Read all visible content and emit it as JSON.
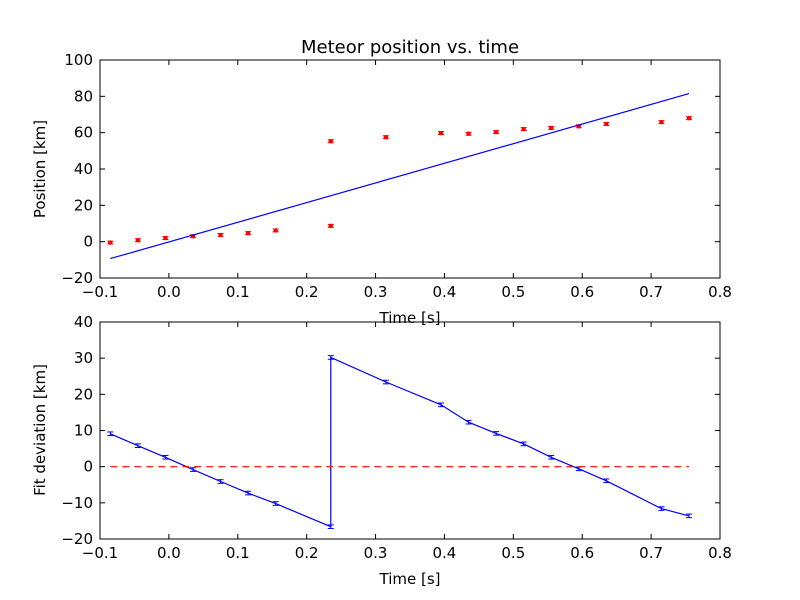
{
  "chart_data": [
    {
      "type": "scatter",
      "title": "Meteor position vs. time",
      "xlabel": "Time [s]",
      "ylabel": "Position [km]",
      "xlim": [
        -0.1,
        0.8
      ],
      "ylim": [
        -20,
        100
      ],
      "xticks": [
        "−0.1",
        "0.0",
        "0.1",
        "0.2",
        "0.3",
        "0.4",
        "0.5",
        "0.6",
        "0.7",
        "0.8"
      ],
      "yticks": [
        "−20",
        "0",
        "20",
        "40",
        "60",
        "80",
        "100"
      ],
      "grid": false,
      "series": [
        {
          "kind": "points-with-errorbars",
          "color": "#ff0000",
          "x": [
            -0.085,
            -0.045,
            -0.005,
            0.035,
            0.075,
            0.115,
            0.155,
            0.235,
            0.235,
            0.315,
            0.395,
            0.435,
            0.475,
            0.515,
            0.555,
            0.595,
            0.635,
            0.715,
            0.755
          ],
          "y": [
            -0.5,
            0.8,
            2.0,
            3.0,
            3.7,
            4.7,
            6.2,
            8.7,
            55.3,
            57.5,
            59.8,
            59.4,
            60.3,
            62.0,
            62.6,
            63.5,
            64.8,
            65.8,
            68.0
          ],
          "yerr": 0.8
        },
        {
          "kind": "line",
          "color": "#0000ff",
          "x": [
            -0.085,
            0.755
          ],
          "y": [
            -9.3,
            81.5
          ]
        }
      ]
    },
    {
      "type": "line",
      "title": "",
      "xlabel": "Time [s]",
      "ylabel": "Fit deviation [km]",
      "xlim": [
        -0.1,
        0.8
      ],
      "ylim": [
        -20,
        40
      ],
      "xticks": [
        "−0.1",
        "0.0",
        "0.1",
        "0.2",
        "0.3",
        "0.4",
        "0.5",
        "0.6",
        "0.7",
        "0.8"
      ],
      "yticks": [
        "−20",
        "−10",
        "0",
        "10",
        "20",
        "30",
        "40"
      ],
      "grid": false,
      "series": [
        {
          "kind": "line-with-errorbars",
          "color": "#0000ff",
          "x": [
            -0.085,
            -0.045,
            -0.005,
            0.035,
            0.075,
            0.115,
            0.155,
            0.235,
            0.235,
            0.315,
            0.395,
            0.435,
            0.475,
            0.515,
            0.555,
            0.595,
            0.635,
            0.715,
            0.755
          ],
          "y": [
            9.1,
            5.8,
            2.6,
            -0.8,
            -4.1,
            -7.3,
            -10.2,
            -16.6,
            30.2,
            23.4,
            17.1,
            12.3,
            9.2,
            6.3,
            2.6,
            -0.6,
            -3.9,
            -11.6,
            -13.6
          ],
          "yerr": 0.5
        },
        {
          "kind": "reference-line",
          "color": "#ff0000",
          "dashed": true,
          "x": [
            -0.085,
            0.755
          ],
          "y": [
            0,
            0
          ]
        }
      ]
    }
  ]
}
